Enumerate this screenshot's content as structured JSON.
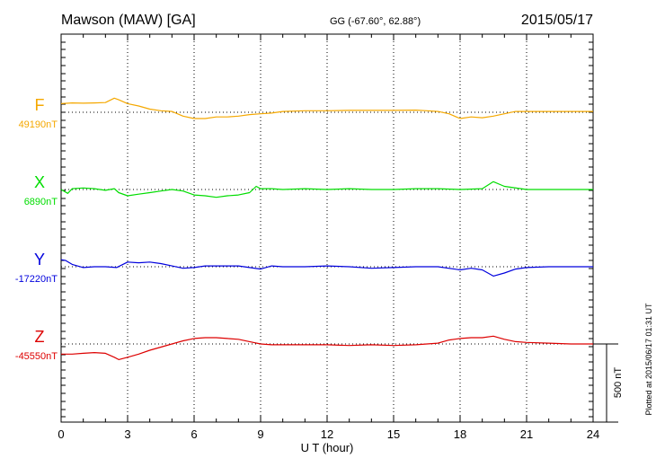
{
  "header": {
    "station": "Mawson (MAW)  [GA]",
    "coords": "GG (-67.60°,  62.88°)",
    "date": "2015/05/17"
  },
  "footer": {
    "plotted": "Plotted at 2015/06/17 01:31  UT"
  },
  "chart_data": {
    "type": "line",
    "title": "Mawson (MAW)  [GA]",
    "xlabel": "U T (hour)",
    "ylabel": "",
    "xlim": [
      0,
      24
    ],
    "x_ticks": [
      0,
      3,
      6,
      9,
      12,
      15,
      18,
      21,
      24
    ],
    "x_tick_labels": [
      "0",
      "3",
      "6",
      "9",
      "12",
      "15",
      "18",
      "21",
      "24"
    ],
    "scale_bar": {
      "label": "500 nT",
      "value_nT": 500
    },
    "ylim_nT": [
      -250,
      350
    ],
    "grid": true,
    "series": [
      {
        "name": "F",
        "baseline_label": "49190nT",
        "baseline_nT": 49190,
        "color": "#f5a800",
        "x": [
          0,
          0.5,
          1,
          1.5,
          2,
          2.4,
          2.6,
          3,
          3.5,
          4,
          4.5,
          5,
          5.5,
          6,
          6.5,
          7,
          7.5,
          8,
          8.5,
          9,
          9.5,
          10,
          11,
          12,
          13,
          14,
          15,
          16,
          16.5,
          17,
          17.5,
          18,
          18.5,
          19,
          19.5,
          20,
          20.5,
          21,
          22,
          23,
          24
        ],
        "y": [
          55,
          60,
          58,
          60,
          62,
          90,
          80,
          55,
          40,
          20,
          10,
          5,
          -25,
          -40,
          -40,
          -30,
          -30,
          -25,
          -15,
          -10,
          -5,
          5,
          10,
          10,
          12,
          12,
          12,
          14,
          10,
          5,
          -10,
          -40,
          -30,
          -35,
          -25,
          -10,
          5,
          5,
          5,
          5,
          5
        ]
      },
      {
        "name": "X",
        "baseline_label": "6890nT",
        "baseline_nT": 6890,
        "color": "#00dd00",
        "x": [
          0,
          0.3,
          0.5,
          1,
          1.5,
          2,
          2.4,
          2.6,
          3,
          3.5,
          4,
          4.5,
          5,
          5.5,
          6,
          6.5,
          7,
          7.5,
          8,
          8.5,
          8.8,
          9,
          9.5,
          10,
          11,
          12,
          13,
          14,
          15,
          16,
          17,
          18,
          19,
          19.5,
          20,
          21,
          22,
          23,
          24
        ],
        "y": [
          0,
          -25,
          5,
          10,
          5,
          -5,
          5,
          -20,
          -40,
          -30,
          -20,
          -10,
          0,
          -10,
          -35,
          -40,
          -50,
          -40,
          -35,
          -20,
          20,
          5,
          5,
          0,
          5,
          0,
          5,
          0,
          0,
          5,
          5,
          0,
          5,
          50,
          20,
          0,
          0,
          0,
          0
        ]
      },
      {
        "name": "Y",
        "baseline_label": "-17220nT",
        "baseline_nT": -17220,
        "color": "#0000dd",
        "x": [
          0,
          0.2,
          0.5,
          1,
          1.5,
          2,
          2.5,
          3,
          3.5,
          4,
          4.5,
          5,
          5.5,
          6,
          6.5,
          7,
          8,
          9,
          9.5,
          10,
          11,
          12,
          13,
          14,
          15,
          16,
          17,
          18,
          18.5,
          19,
          19.5,
          20,
          20.5,
          21,
          22,
          23,
          24
        ],
        "y": [
          45,
          40,
          15,
          -5,
          0,
          0,
          -5,
          30,
          25,
          30,
          20,
          5,
          -10,
          -5,
          5,
          5,
          5,
          -15,
          5,
          0,
          0,
          5,
          0,
          -10,
          -5,
          0,
          0,
          -20,
          -10,
          -20,
          -60,
          -40,
          -15,
          -5,
          0,
          0,
          0
        ]
      },
      {
        "name": "Z",
        "baseline_label": "-45550nT",
        "baseline_nT": -45550,
        "color": "#dd0000",
        "x": [
          0,
          0.5,
          1,
          1.5,
          2,
          2.4,
          2.6,
          3,
          3.5,
          4,
          4.5,
          5,
          5.5,
          6,
          6.5,
          7,
          7.5,
          8,
          8.5,
          9,
          9.5,
          10,
          11,
          12,
          13,
          14,
          15,
          16,
          17,
          17.5,
          18,
          18.5,
          19,
          19.5,
          20,
          20.5,
          21,
          22,
          23,
          24
        ],
        "y": [
          -65,
          -65,
          -60,
          -55,
          -60,
          -85,
          -100,
          -85,
          -65,
          -40,
          -20,
          0,
          20,
          35,
          40,
          40,
          35,
          30,
          15,
          0,
          -5,
          -5,
          -5,
          -5,
          -10,
          -5,
          -10,
          -5,
          5,
          25,
          35,
          40,
          40,
          50,
          30,
          15,
          10,
          5,
          0,
          0
        ]
      }
    ]
  }
}
